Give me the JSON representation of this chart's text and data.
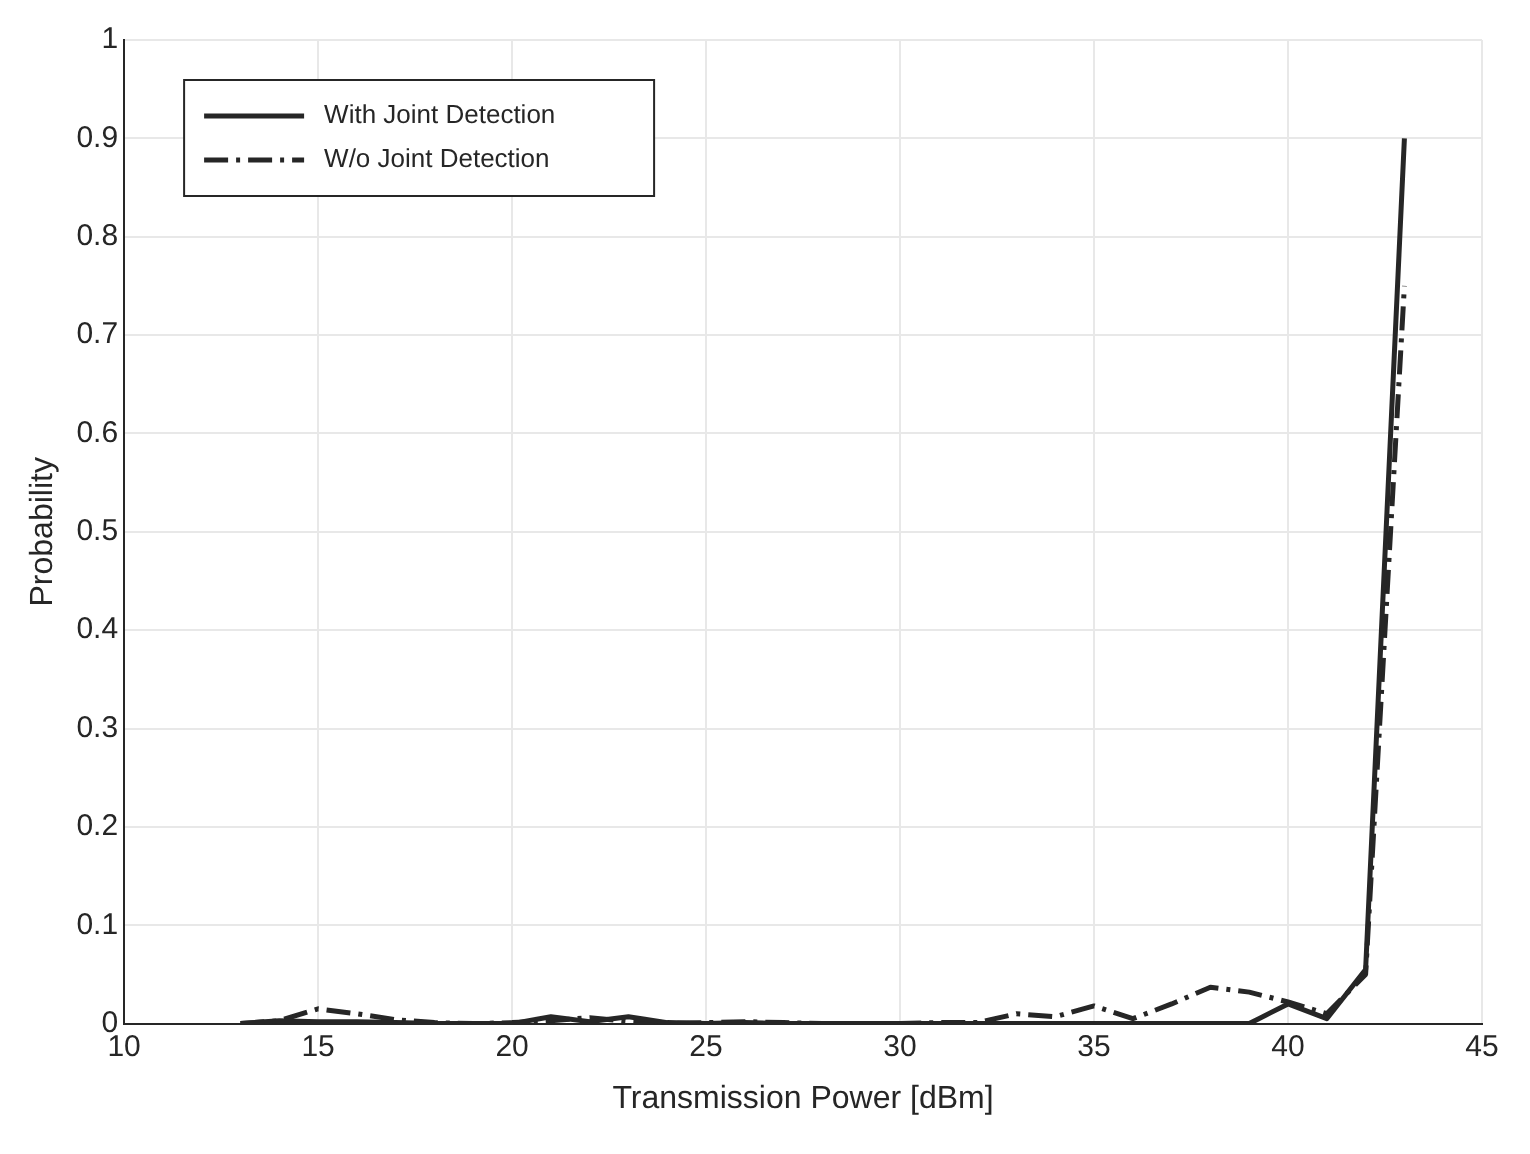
{
  "chart_data": {
    "type": "line",
    "xlabel": "Transmission Power [dBm]",
    "ylabel": "Probability",
    "x": [
      13,
      14,
      15,
      16,
      17,
      18,
      19,
      20,
      21,
      22,
      23,
      24,
      25,
      26,
      27,
      28,
      29,
      30,
      31,
      32,
      33,
      34,
      35,
      36,
      37,
      38,
      39,
      40,
      41,
      42,
      43
    ],
    "series": [
      {
        "name": "With Joint Detection",
        "color": "#262626",
        "line_style": "solid",
        "values": [
          0,
          0.003,
          0.002,
          0.002,
          0.001,
          0,
          0,
          0,
          0.007,
          0.002,
          0.007,
          0.001,
          0,
          0.001,
          0,
          0,
          0,
          0,
          0,
          0,
          0,
          0,
          0,
          0,
          0,
          0,
          0,
          0.02,
          0.005,
          0.055,
          0.9
        ]
      },
      {
        "name": "W/o Joint Detection",
        "color": "#262626",
        "line_style": "dashed",
        "values": [
          0,
          0.003,
          0.015,
          0.01,
          0.004,
          0.001,
          0,
          0.001,
          0.003,
          0.006,
          0.002,
          0,
          0.001,
          0.002,
          0.001,
          0,
          0,
          0,
          0.001,
          0.001,
          0.01,
          0.007,
          0.018,
          0.005,
          0.02,
          0.037,
          0.032,
          0.022,
          0.01,
          0.05,
          0.75
        ]
      }
    ],
    "xlim": [
      10,
      45
    ],
    "xticks": [
      10,
      15,
      20,
      25,
      30,
      35,
      40,
      45
    ],
    "ylim": [
      0,
      1
    ],
    "yticks": [
      0,
      0.1,
      0.2,
      0.3,
      0.4,
      0.5,
      0.6,
      0.7,
      0.8,
      0.9,
      1
    ],
    "grid": true,
    "legend": "top left",
    "marker": "none"
  }
}
